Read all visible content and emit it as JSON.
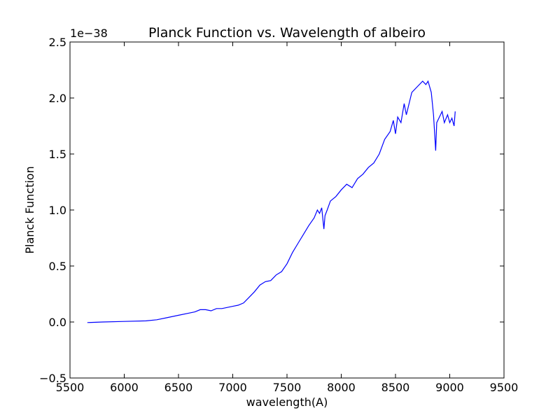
{
  "chart_data": {
    "type": "line",
    "title": "Planck Function vs. Wavelength of albeiro",
    "xlabel": "wavelength(A)",
    "ylabel": "Planck Function",
    "y_offset_label": "1e−38",
    "xlim": [
      5500,
      9500
    ],
    "ylim": [
      -0.5,
      2.5
    ],
    "xticks": [
      5500,
      6000,
      6500,
      7000,
      7500,
      8000,
      8500,
      9000,
      9500
    ],
    "xtick_labels": [
      "5500",
      "6000",
      "6500",
      "7000",
      "7500",
      "8000",
      "8500",
      "9000",
      "9500"
    ],
    "yticks": [
      -0.5,
      0.0,
      0.5,
      1.0,
      1.5,
      2.0,
      2.5
    ],
    "ytick_labels": [
      "−0.5",
      "0.0",
      "0.5",
      "1.0",
      "1.5",
      "2.0",
      "2.5"
    ],
    "grid": false,
    "line_color": "#0000ff",
    "series": [
      {
        "x": [
          5660,
          5800,
          6000,
          6200,
          6300,
          6400,
          6500,
          6600,
          6650,
          6700,
          6750,
          6800,
          6850,
          6900,
          6950,
          7000,
          7050,
          7100,
          7150,
          7200,
          7250,
          7300,
          7350,
          7400,
          7450,
          7500,
          7550,
          7600,
          7650,
          7700,
          7750,
          7780,
          7800,
          7820,
          7840,
          7850,
          7870,
          7900,
          7950,
          8000,
          8050,
          8100,
          8150,
          8200,
          8250,
          8300,
          8350,
          8400,
          8450,
          8480,
          8500,
          8520,
          8550,
          8580,
          8600,
          8650,
          8700,
          8750,
          8780,
          8800,
          8830,
          8850,
          8870,
          8880,
          8900,
          8930,
          8950,
          8980,
          9000,
          9020,
          9040,
          9050
        ],
        "y": [
          -0.005,
          0.0,
          0.005,
          0.01,
          0.02,
          0.04,
          0.06,
          0.08,
          0.09,
          0.11,
          0.11,
          0.1,
          0.12,
          0.12,
          0.13,
          0.14,
          0.15,
          0.17,
          0.22,
          0.27,
          0.33,
          0.36,
          0.37,
          0.42,
          0.45,
          0.52,
          0.62,
          0.7,
          0.78,
          0.86,
          0.93,
          1.0,
          0.97,
          1.02,
          0.83,
          0.95,
          1.0,
          1.08,
          1.12,
          1.18,
          1.23,
          1.2,
          1.28,
          1.32,
          1.38,
          1.42,
          1.5,
          1.63,
          1.7,
          1.8,
          1.68,
          1.83,
          1.78,
          1.95,
          1.85,
          2.05,
          2.1,
          2.15,
          2.12,
          2.15,
          2.05,
          1.85,
          1.53,
          1.78,
          1.82,
          1.88,
          1.78,
          1.85,
          1.78,
          1.82,
          1.75,
          1.88
        ]
      }
    ]
  }
}
